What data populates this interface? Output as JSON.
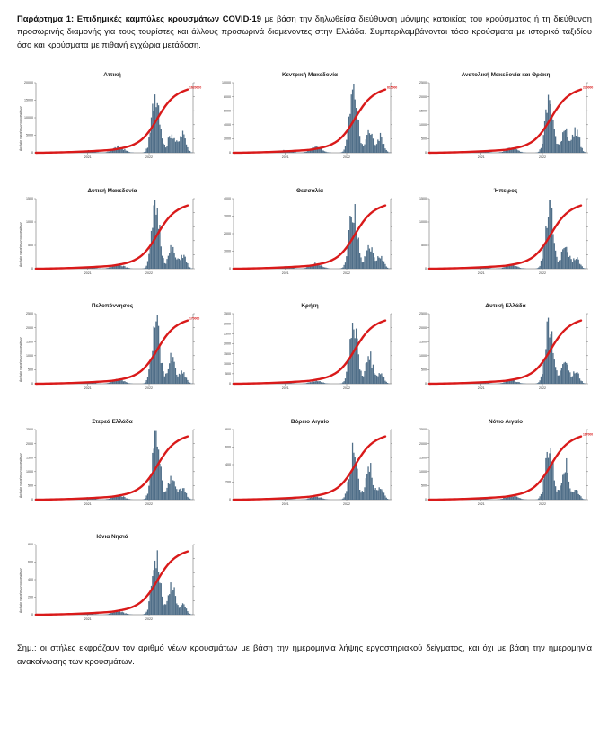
{
  "caption": {
    "lead": "Παράρτημα 1:  Επιδημικές καμπύλες κρουσμάτων COVID-19",
    "text": " με βάση την δηλωθείσα διεύθυνση μόνιμης κατοικίας του κρούσματος ή τη διεύθυνση προσωρινής διαμονής για τους τουρίστες και άλλους προσωρινά διαμένοντες στην Ελλάδα. Συμπεριλαμβάνονται τόσο κρούσματα με ιστορικό ταξιδίου όσο και κρούσματα με πιθανή εγχώρια μετάδοση."
  },
  "note": "Σημ.:  οι στήλες εκφράζουν τον αριθμό νέων κρουσμάτων με βάση την ημερομηνία λήψης εργαστηριακού δείγματος, και όχι με βάση την ημερομηνία ανακοίνωσης των κρουσμάτων.",
  "colors": {
    "bars": "#4f6e88",
    "line": "#d91a1a",
    "axis": "#555555"
  },
  "chart_data": [
    {
      "type": "bar",
      "region": "Αττική",
      "title": "Αττική",
      "ylabel": "Αριθμός ημερήσιων κρουσμάτων",
      "xticks": [
        "2021",
        "2022"
      ],
      "bar_ymax": 20000,
      "bar_yticks": [
        0,
        5000,
        10000,
        15000,
        20000
      ],
      "cumulative_end": "1620000",
      "mid_label": "",
      "peak_label": "",
      "shape": [
        0.2,
        0.45,
        0.7,
        1.0,
        0.55,
        0.8
      ]
    },
    {
      "type": "bar",
      "region": "Κεντρική Μακεδονία",
      "title": "Κεντρική Μακεδονία",
      "ylabel": "",
      "xticks": [
        "2021",
        "2022"
      ],
      "bar_ymax": 10000,
      "bar_yticks": [
        0,
        2000,
        4000,
        6000,
        8000,
        10000
      ],
      "cumulative_end": "815000",
      "mid_label": "",
      "peak_label": "",
      "shape": [
        0.25,
        0.5,
        0.65,
        1.0,
        0.6,
        0.7
      ]
    },
    {
      "type": "bar",
      "region": "Ανατολική Μακεδονία και Θράκη",
      "title": "Ανατολική Μακεδονία και Θράκη",
      "ylabel": "",
      "xticks": [
        "2021",
        "2022"
      ],
      "bar_ymax": 2500,
      "bar_yticks": [
        0,
        500,
        1000,
        1500,
        2000,
        2500
      ],
      "cumulative_end": "230000",
      "mid_label": "",
      "peak_label": "",
      "shape": [
        0.3,
        0.35,
        0.55,
        0.85,
        0.7,
        1.0
      ]
    },
    {
      "type": "bar",
      "region": "Δυτική Μακεδονία",
      "title": "Δυτική Μακεδονία",
      "ylabel": "Αριθμός ημερήσιων κρουσμάτων",
      "xticks": [
        "2021",
        "2022"
      ],
      "bar_ymax": 1500,
      "bar_yticks": [
        0,
        500,
        1000,
        1500
      ],
      "cumulative_end": "",
      "mid_label": "",
      "peak_label": "",
      "shape": [
        0.2,
        0.4,
        0.5,
        1.0,
        0.55,
        0.6
      ]
    },
    {
      "type": "bar",
      "region": "Θεσσαλία",
      "title": "Θεσσαλία",
      "ylabel": "",
      "xticks": [
        "2021",
        "2022"
      ],
      "bar_ymax": 4000,
      "bar_yticks": [
        0,
        1000,
        2000,
        3000,
        4000
      ],
      "cumulative_end": "",
      "mid_label": "",
      "peak_label": "",
      "shape": [
        0.15,
        0.45,
        0.6,
        1.0,
        0.65,
        0.55
      ]
    },
    {
      "type": "bar",
      "region": "Ήπειρος",
      "title": "Ήπειρος",
      "ylabel": "",
      "xticks": [
        "2021",
        "2022"
      ],
      "bar_ymax": 1500,
      "bar_yticks": [
        0,
        500,
        1000,
        1500
      ],
      "cumulative_end": "",
      "mid_label": "",
      "peak_label": "",
      "shape": [
        0.15,
        0.3,
        0.45,
        1.0,
        0.7,
        0.5
      ]
    },
    {
      "type": "bar",
      "region": "Πελοπόννησος",
      "title": "Πελοπόννησος",
      "ylabel": "Αριθμός ημερήσιων κρουσμάτων",
      "xticks": [
        "2021",
        "2022"
      ],
      "bar_ymax": 2500,
      "bar_yticks": [
        0,
        500,
        1000,
        1500,
        2000,
        2500
      ],
      "cumulative_end": "170000",
      "mid_label": "",
      "peak_label": "",
      "shape": [
        0.1,
        0.3,
        0.5,
        1.0,
        0.75,
        0.5
      ]
    },
    {
      "type": "bar",
      "region": "Κρήτη",
      "title": "Κρήτη",
      "ylabel": "",
      "xticks": [
        "2021",
        "2022"
      ],
      "bar_ymax": 3500,
      "bar_yticks": [
        0,
        500,
        1000,
        1500,
        2000,
        2500,
        3000,
        3500
      ],
      "cumulative_end": "",
      "mid_label": "",
      "peak_label": "",
      "shape": [
        0.1,
        0.2,
        0.35,
        1.0,
        0.8,
        0.45
      ]
    },
    {
      "type": "bar",
      "region": "Δυτική Ελλάδα",
      "title": "Δυτική Ελλάδα",
      "ylabel": "",
      "xticks": [
        "2021",
        "2022"
      ],
      "bar_ymax": 2500,
      "bar_yticks": [
        0,
        500,
        1000,
        1500,
        2000,
        2500
      ],
      "cumulative_end": "",
      "mid_label": "",
      "peak_label": "",
      "shape": [
        0.1,
        0.25,
        0.4,
        1.0,
        0.75,
        0.5
      ]
    },
    {
      "type": "bar",
      "region": "Στερεά Ελλάδα",
      "title": "Στερεά Ελλάδα",
      "ylabel": "Αριθμός ημερήσιων κρουσμάτων",
      "xticks": [
        "2021",
        "2022"
      ],
      "bar_ymax": 2500,
      "bar_yticks": [
        0,
        500,
        1000,
        1500,
        2000,
        2500
      ],
      "cumulative_end": "",
      "mid_label": "",
      "peak_label": "",
      "shape": [
        0.15,
        0.4,
        0.5,
        1.0,
        0.6,
        0.5
      ]
    },
    {
      "type": "bar",
      "region": "Βόρειο Αιγαίο",
      "title": "Βόρειο Αιγαίο",
      "ylabel": "",
      "xticks": [
        "2021",
        "2022"
      ],
      "bar_ymax": 800,
      "bar_yticks": [
        0,
        200,
        400,
        600,
        800
      ],
      "cumulative_end": "",
      "mid_label": "",
      "peak_label": "",
      "shape": [
        0.1,
        0.15,
        0.35,
        0.75,
        1.0,
        0.45
      ]
    },
    {
      "type": "bar",
      "region": "Νότιο Αιγαίο",
      "title": "Νότιο Αιγαίο",
      "ylabel": "",
      "xticks": [
        "2021",
        "2022"
      ],
      "bar_ymax": 2500,
      "bar_yticks": [
        0,
        500,
        1000,
        1500,
        2000,
        2500
      ],
      "cumulative_end": "117000",
      "mid_label": "",
      "peak_label": "",
      "shape": [
        0.1,
        0.2,
        0.5,
        0.85,
        1.0,
        0.4
      ]
    },
    {
      "type": "bar",
      "region": "Ιόνια Νησιά",
      "title": "Ιόνια Νησιά",
      "ylabel": "Αριθμός ημερήσιων κρουσμάτων",
      "xticks": [
        "2021",
        "2022"
      ],
      "bar_ymax": 800,
      "bar_yticks": [
        0,
        200,
        400,
        600,
        800
      ],
      "cumulative_end": "",
      "mid_label": "",
      "peak_label": "",
      "shape": [
        0.1,
        0.2,
        0.4,
        1.0,
        0.85,
        0.45
      ]
    }
  ]
}
